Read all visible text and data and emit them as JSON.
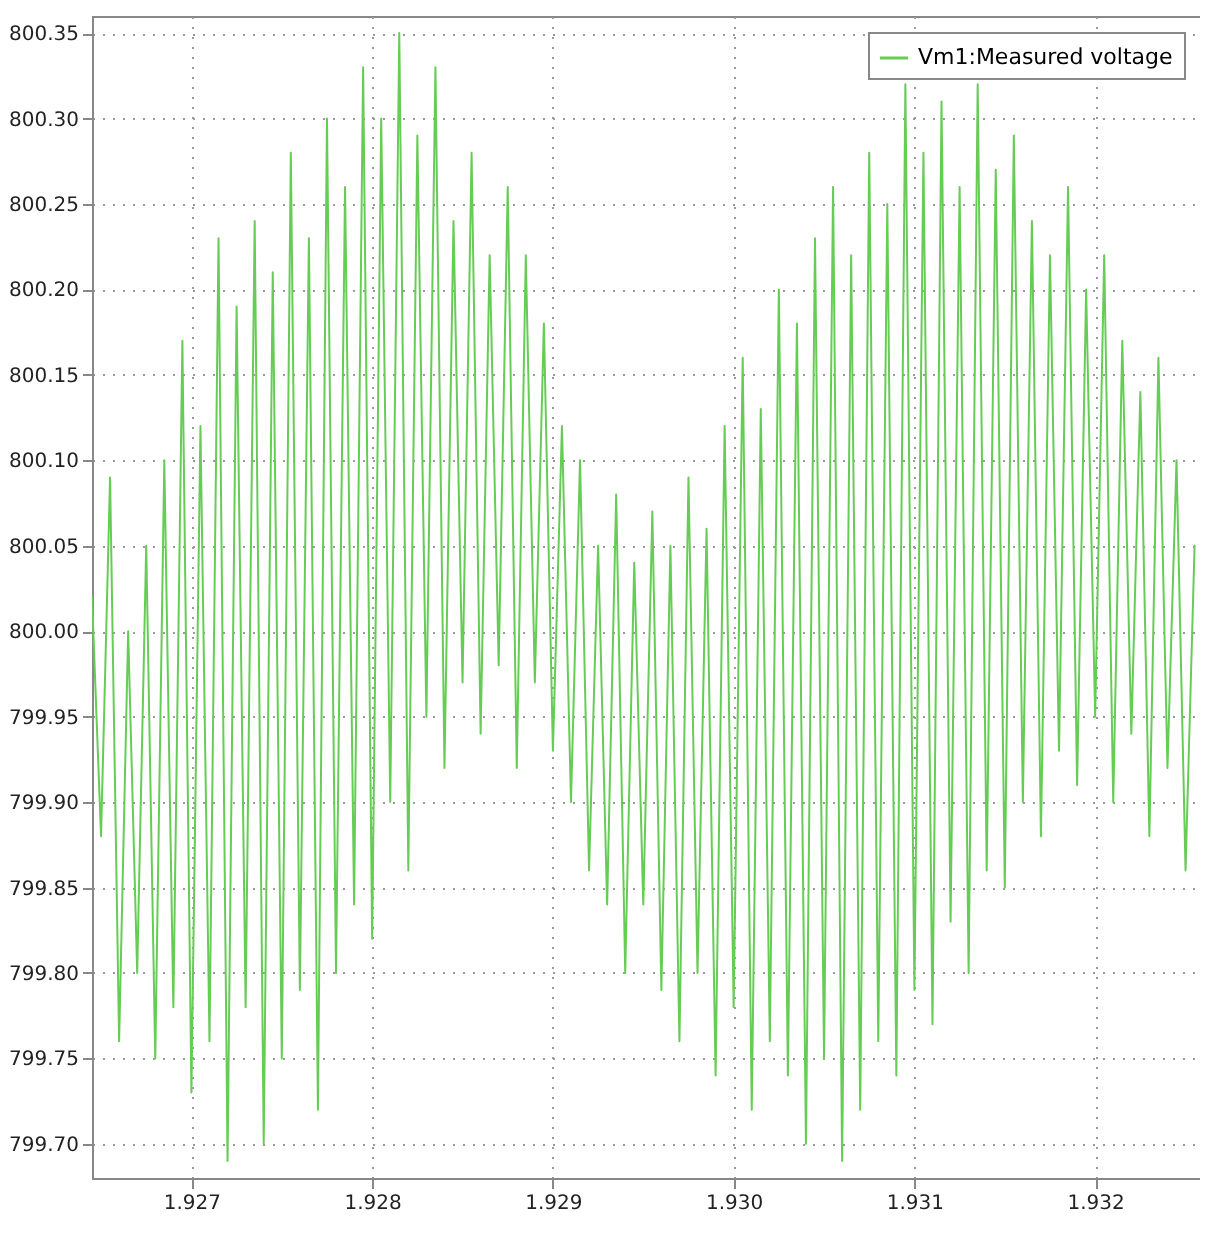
{
  "chart_data": {
    "type": "line",
    "legend": "top right",
    "grid": true,
    "line_style": "solid",
    "marker": "none",
    "xlim": [
      1.92645,
      1.93258
    ],
    "ylim": [
      799.68,
      800.36
    ],
    "xticks": [
      1.927,
      1.928,
      1.929,
      {
        "value": 1.93,
        "label": "1.930"
      },
      1.931,
      1.932
    ],
    "yticks": [
      {
        "value": 799.7,
        "label": "799.70"
      },
      799.75,
      {
        "value": 799.8,
        "label": "799.80"
      },
      799.85,
      {
        "value": 799.9,
        "label": "799.90"
      },
      799.95,
      {
        "value": 800,
        "label": "800.00"
      },
      800.05,
      {
        "value": 800.1,
        "label": "800.10"
      },
      800.15,
      {
        "value": 800.2,
        "label": "800.20"
      },
      800.25,
      {
        "value": 800.3,
        "label": "800.30"
      },
      800.35
    ],
    "x": [
      1.92645,
      1.9265,
      1.92655,
      1.9266,
      1.92665,
      1.9267,
      1.92675,
      1.9268,
      1.92685,
      1.9269,
      1.92695,
      1.927,
      1.92705,
      1.9271,
      1.92715,
      1.9272,
      1.92725,
      1.9273,
      1.92735,
      1.9274,
      1.92745,
      1.9275,
      1.92755,
      1.9276,
      1.92765,
      1.9277,
      1.92775,
      1.9278,
      1.92785,
      1.9279,
      1.92795,
      1.928,
      1.92805,
      1.9281,
      1.92815,
      1.9282,
      1.92825,
      1.9283,
      1.92835,
      1.9284,
      1.92845,
      1.9285,
      1.92855,
      1.9286,
      1.92865,
      1.9287,
      1.92875,
      1.9288,
      1.92885,
      1.9289,
      1.92895,
      1.929,
      1.92905,
      1.9291,
      1.92915,
      1.9292,
      1.92925,
      1.9293,
      1.92935,
      1.9294,
      1.92945,
      1.9295,
      1.92955,
      1.9296,
      1.92965,
      1.9297,
      1.92975,
      1.9298,
      1.92985,
      1.9299,
      1.92995,
      1.93,
      1.93005,
      1.9301,
      1.93015,
      1.9302,
      1.93025,
      1.9303,
      1.93035,
      1.9304,
      1.93045,
      1.9305,
      1.93055,
      1.9306,
      1.93065,
      1.9307,
      1.93075,
      1.9308,
      1.93085,
      1.9309,
      1.93095,
      1.931,
      1.93105,
      1.9311,
      1.93115,
      1.9312,
      1.93125,
      1.9313,
      1.93135,
      1.9314,
      1.93145,
      1.9315,
      1.93155,
      1.9316,
      1.93165,
      1.9317,
      1.93175,
      1.9318,
      1.93185,
      1.9319,
      1.93195,
      1.932,
      1.93205,
      1.9321,
      1.93215,
      1.9322,
      1.93225,
      1.9323,
      1.93235,
      1.9324,
      1.93245,
      1.9325,
      1.93255
    ],
    "series": [
      {
        "name": "Vm1:Measured voltage",
        "color": "#66cc55",
        "values": [
          800.02,
          799.88,
          800.09,
          799.76,
          800.0,
          799.8,
          800.05,
          799.75,
          800.1,
          799.78,
          800.17,
          799.73,
          800.12,
          799.76,
          800.23,
          799.69,
          800.19,
          799.78,
          800.24,
          799.7,
          800.21,
          799.75,
          800.28,
          799.79,
          800.23,
          799.72,
          800.3,
          799.8,
          800.26,
          799.84,
          800.33,
          799.82,
          800.3,
          799.9,
          800.35,
          799.86,
          800.29,
          799.95,
          800.33,
          799.92,
          800.24,
          799.97,
          800.28,
          799.94,
          800.22,
          799.98,
          800.26,
          799.92,
          800.22,
          799.97,
          800.18,
          799.93,
          800.12,
          799.9,
          800.1,
          799.86,
          800.05,
          799.84,
          800.08,
          799.8,
          800.04,
          799.84,
          800.07,
          799.79,
          800.05,
          799.76,
          800.09,
          799.8,
          800.06,
          799.74,
          800.12,
          799.78,
          800.16,
          799.72,
          800.13,
          799.76,
          800.2,
          799.74,
          800.18,
          799.7,
          800.23,
          799.75,
          800.26,
          799.69,
          800.22,
          799.72,
          800.28,
          799.76,
          800.25,
          799.74,
          800.32,
          799.79,
          800.28,
          799.77,
          800.31,
          799.83,
          800.26,
          799.8,
          800.32,
          799.86,
          800.27,
          799.85,
          800.29,
          799.9,
          800.24,
          799.88,
          800.22,
          799.93,
          800.26,
          799.91,
          800.2,
          799.95,
          800.22,
          799.9,
          800.17,
          799.94,
          800.14,
          799.88,
          800.16,
          799.92,
          800.1,
          799.86,
          800.05
        ]
      }
    ]
  }
}
